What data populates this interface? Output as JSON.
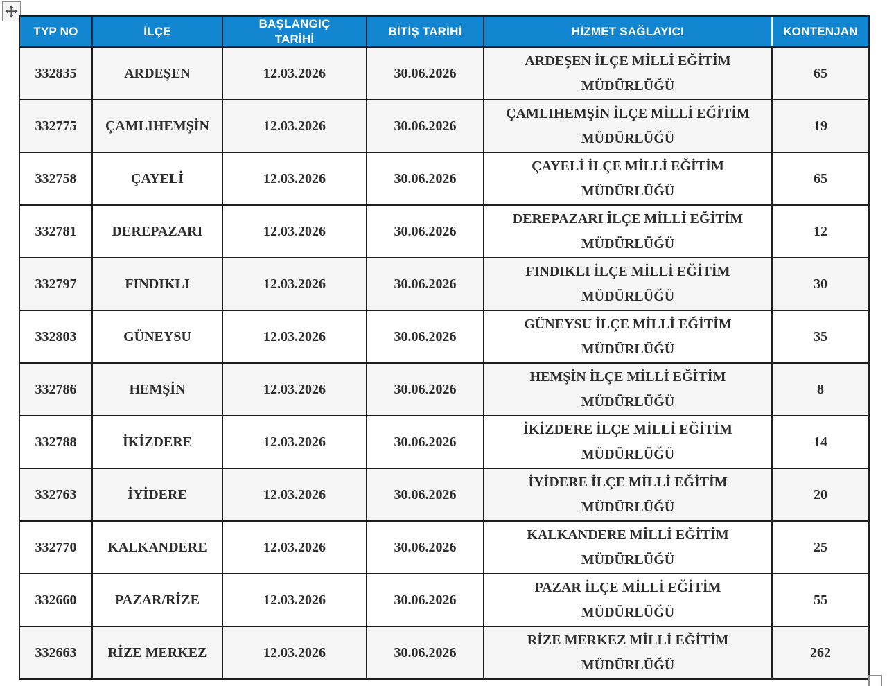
{
  "colors": {
    "header_bg": "#1286d1",
    "header_text": "#ffffff",
    "header_divider": "#132944",
    "header_divider_last": "#ffffff",
    "grid_border": "#1e1e1e",
    "row_shaded": "#f5f5f5",
    "row_plain": "#ffffff",
    "body_text": "#2d2d2d",
    "handle_border": "#8a8a8a"
  },
  "icons": {
    "move_handle": "table-move-handle-icon",
    "resize_handle": "table-resize-handle-icon"
  },
  "table": {
    "columns": [
      {
        "key": "typ_no",
        "label": "TYP NO"
      },
      {
        "key": "ilce",
        "label": "İLÇE"
      },
      {
        "key": "baslangic",
        "label": "BAŞLANGIÇ\nTARİHİ"
      },
      {
        "key": "bitis",
        "label": "BİTİŞ TARİHİ"
      },
      {
        "key": "hizmet",
        "label": "HİZMET SAĞLAYICI"
      },
      {
        "key": "kontenjan",
        "label": "KONTENJAN"
      }
    ],
    "rows": [
      {
        "typ_no": "332835",
        "ilce": "ARDEŞEN",
        "baslangic": "12.03.2026",
        "bitis": "30.06.2026",
        "hizmet": "ARDEŞEN İLÇE MİLLİ EĞİTİM MÜDÜRLÜĞÜ",
        "kontenjan": "65",
        "shaded": true
      },
      {
        "typ_no": "332775",
        "ilce": "ÇAMLIHEMŞİN",
        "baslangic": "12.03.2026",
        "bitis": "30.06.2026",
        "hizmet": "ÇAMLIHEMŞİN İLÇE MİLLİ EĞİTİM MÜDÜRLÜĞÜ",
        "kontenjan": "19",
        "shaded": true
      },
      {
        "typ_no": "332758",
        "ilce": "ÇAYELİ",
        "baslangic": "12.03.2026",
        "bitis": "30.06.2026",
        "hizmet": "ÇAYELİ İLÇE MİLLİ EĞİTİM MÜDÜRLÜĞÜ",
        "kontenjan": "65",
        "shaded": false
      },
      {
        "typ_no": "332781",
        "ilce": "DEREPAZARI",
        "baslangic": "12.03.2026",
        "bitis": "30.06.2026",
        "hizmet": "DEREPAZARI İLÇE MİLLİ EĞİTİM MÜDÜRLÜĞÜ",
        "kontenjan": "12",
        "shaded": false
      },
      {
        "typ_no": "332797",
        "ilce": "FINDIKLI",
        "baslangic": "12.03.2026",
        "bitis": "30.06.2026",
        "hizmet": "FINDIKLI İLÇE MİLLİ EĞİTİM MÜDÜRLÜĞÜ",
        "kontenjan": "30",
        "shaded": true
      },
      {
        "typ_no": "332803",
        "ilce": "GÜNEYSU",
        "baslangic": "12.03.2026",
        "bitis": "30.06.2026",
        "hizmet": "GÜNEYSU İLÇE MİLLİ EĞİTİM MÜDÜRLÜĞÜ",
        "kontenjan": "35",
        "shaded": false
      },
      {
        "typ_no": "332786",
        "ilce": "HEMŞİN",
        "baslangic": "12.03.2026",
        "bitis": "30.06.2026",
        "hizmet": "HEMŞİN İLÇE MİLLİ EĞİTİM MÜDÜRLÜĞÜ",
        "kontenjan": "8",
        "shaded": true
      },
      {
        "typ_no": "332788",
        "ilce": "İKİZDERE",
        "baslangic": "12.03.2026",
        "bitis": "30.06.2026",
        "hizmet": "İKİZDERE İLÇE MİLLİ EĞİTİM MÜDÜRLÜĞÜ",
        "kontenjan": "14",
        "shaded": false
      },
      {
        "typ_no": "332763",
        "ilce": "İYİDERE",
        "baslangic": "12.03.2026",
        "bitis": "30.06.2026",
        "hizmet": "İYİDERE İLÇE MİLLİ EĞİTİM MÜDÜRLÜĞÜ",
        "kontenjan": "20",
        "shaded": true
      },
      {
        "typ_no": "332770",
        "ilce": "KALKANDERE",
        "baslangic": "12.03.2026",
        "bitis": "30.06.2026",
        "hizmet": "KALKANDERE MİLLİ EĞİTİM MÜDÜRLÜĞÜ",
        "kontenjan": "25",
        "shaded": false
      },
      {
        "typ_no": "332660",
        "ilce": "PAZAR/RİZE",
        "baslangic": "12.03.2026",
        "bitis": "30.06.2026",
        "hizmet": "PAZAR İLÇE MİLLİ EĞİTİM MÜDÜRLÜĞÜ",
        "kontenjan": "55",
        "shaded": false
      },
      {
        "typ_no": "332663",
        "ilce": "RİZE MERKEZ",
        "baslangic": "12.03.2026",
        "bitis": "30.06.2026",
        "hizmet": "RİZE MERKEZ MİLLİ EĞİTİM MÜDÜRLÜĞÜ",
        "kontenjan": "262",
        "shaded": true
      }
    ]
  }
}
